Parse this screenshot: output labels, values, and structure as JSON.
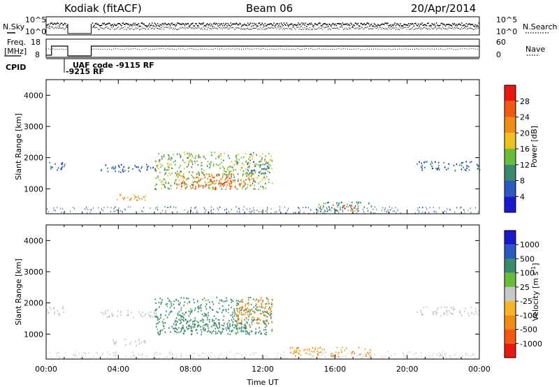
{
  "header": {
    "station": "Kodiak (fitACF)",
    "beam": "Beam 06",
    "date": "20/Apr/2014"
  },
  "top_panel": {
    "left_label": "N.Sky",
    "right_label": "N.Search",
    "left_ticks": [
      "10^5",
      "10^0"
    ],
    "right_ticks": [
      "10^5",
      "10^0"
    ]
  },
  "freq_panel": {
    "left_label_1": "Freq.",
    "left_label_2": "[MHz]",
    "left_ticks": [
      "18",
      "8"
    ],
    "right_label": "Nave",
    "right_ticks": [
      "60",
      "0"
    ]
  },
  "cpid_panel": {
    "label": "CPID",
    "line1": "UAF code -9115 RF",
    "line2": "-9215 RF"
  },
  "colors": {
    "power_scale": [
      "#1a1acc",
      "#2a5ac0",
      "#3c8a6e",
      "#6cbc3c",
      "#f0c020",
      "#f08c18",
      "#f05a10",
      "#e81a10"
    ],
    "velocity_scale": [
      "#e81a10",
      "#f05a10",
      "#f08c18",
      "#f8b428",
      "#c8c8c8",
      "#6cbc3c",
      "#3c8a6e",
      "#2a5ac0",
      "#1a1acc"
    ]
  },
  "chart_data": [
    {
      "type": "heatmap",
      "ylabel": "Slant Range [km]",
      "yticks": [
        1000,
        2000,
        3000,
        4000
      ],
      "ylim": [
        200,
        4500
      ],
      "colorbar": {
        "label": "Power [dB]",
        "ticks": [
          "28",
          "24",
          "20",
          "16",
          "12",
          "8",
          "4"
        ]
      },
      "regions": [
        {
          "t": [
            0.0,
            1.0
          ],
          "r": [
            1600,
            1900
          ],
          "v": 6
        },
        {
          "t": [
            3.0,
            6.2
          ],
          "r": [
            1550,
            1800
          ],
          "v": 6
        },
        {
          "t": [
            3.5,
            5.5
          ],
          "r": [
            650,
            850
          ],
          "v": 20
        },
        {
          "t": [
            6.0,
            12.5
          ],
          "r": [
            1000,
            2200
          ],
          "v": 14
        },
        {
          "t": [
            7.0,
            11.5
          ],
          "r": [
            1100,
            1500
          ],
          "v": 24
        },
        {
          "t": [
            8.0,
            10.5
          ],
          "r": [
            1000,
            1300
          ],
          "v": 26
        },
        {
          "t": [
            11.0,
            12.5
          ],
          "r": [
            1500,
            1900
          ],
          "v": 8
        },
        {
          "t": [
            15.0,
            18.0
          ],
          "r": [
            300,
            600
          ],
          "v": 10
        },
        {
          "t": [
            15.8,
            17.2
          ],
          "r": [
            350,
            520
          ],
          "v": 28
        },
        {
          "t": [
            20.5,
            24.0
          ],
          "r": [
            1600,
            1900
          ],
          "v": 6
        }
      ]
    },
    {
      "type": "heatmap",
      "xlabel": "Time UT",
      "ylabel": "Slant Range [km]",
      "xticks": [
        "00:00",
        "04:00",
        "08:00",
        "12:00",
        "16:00",
        "20:00",
        "00:00"
      ],
      "yticks": [
        1000,
        2000,
        3000,
        4000
      ],
      "ylim": [
        200,
        4500
      ],
      "colorbar": {
        "label": "Velocity [m s",
        "label_sup": "-1",
        "label_end": "]",
        "ticks": [
          "1000",
          "500",
          "100",
          "25",
          "-25",
          "-100",
          "-500",
          "-1000"
        ]
      },
      "regions": [
        {
          "t": [
            0.0,
            1.0
          ],
          "r": [
            1600,
            1900
          ],
          "v": 0
        },
        {
          "t": [
            3.0,
            6.2
          ],
          "r": [
            1550,
            1800
          ],
          "v": 0
        },
        {
          "t": [
            3.5,
            5.5
          ],
          "r": [
            650,
            850
          ],
          "v": 0
        },
        {
          "t": [
            6.0,
            12.5
          ],
          "r": [
            1000,
            2200
          ],
          "v": 150
        },
        {
          "t": [
            7.0,
            11.5
          ],
          "r": [
            1100,
            1500
          ],
          "v": 300
        },
        {
          "t": [
            10.5,
            12.5
          ],
          "r": [
            1300,
            2200
          ],
          "v": -150
        },
        {
          "t": [
            13.5,
            18.0
          ],
          "r": [
            300,
            600
          ],
          "v": -120
        },
        {
          "t": [
            20.5,
            24.0
          ],
          "r": [
            1600,
            1900
          ],
          "v": 0
        }
      ]
    }
  ]
}
